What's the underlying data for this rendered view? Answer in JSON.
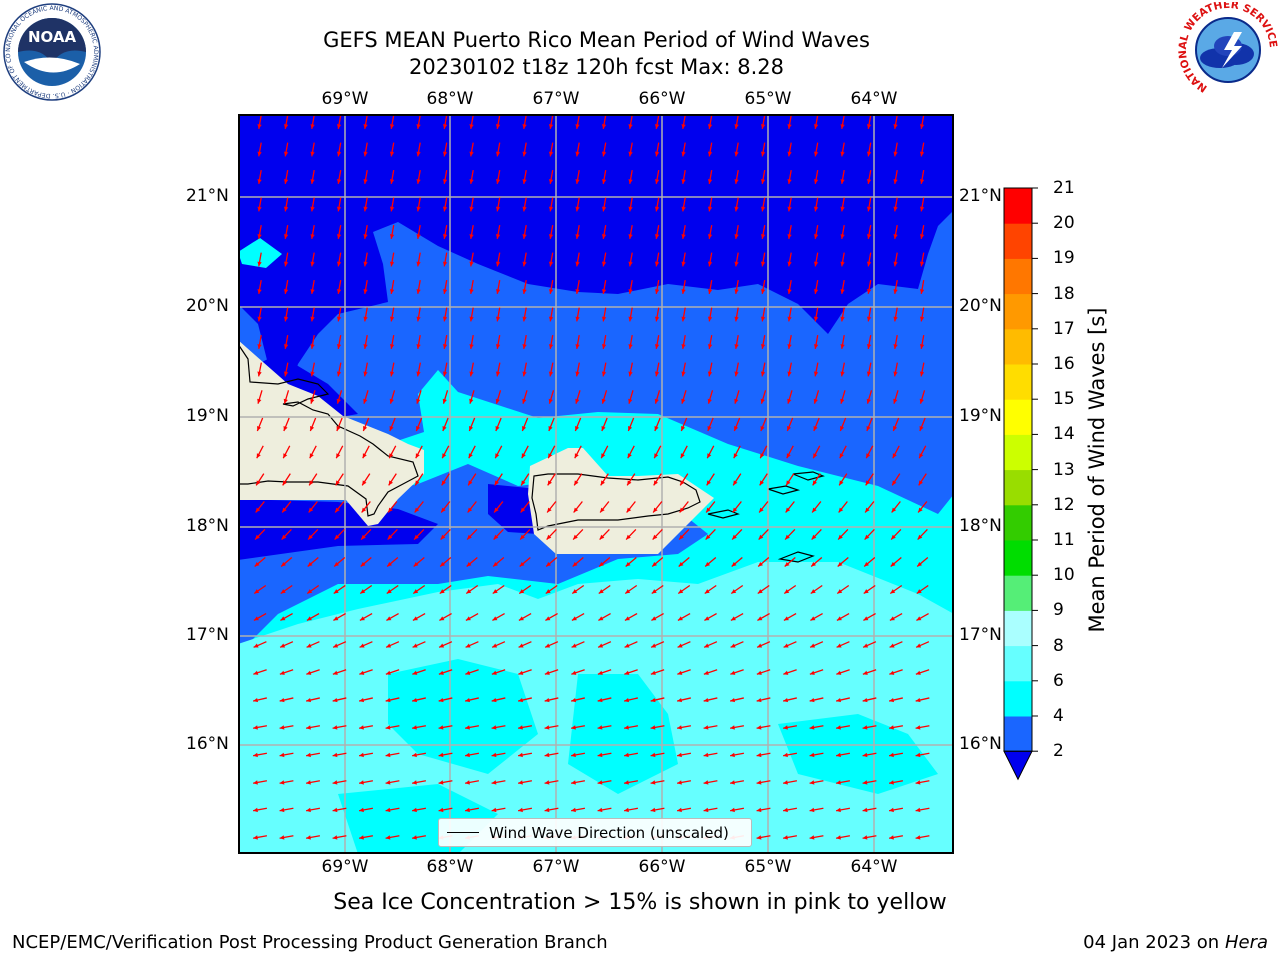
{
  "title_line1": "GEFS MEAN Puerto Rico Mean Period of Wind Waves",
  "title_line2": "20230102 t18z 120h fcst   Max: 8.28",
  "lon_labels": [
    "69°W",
    "68°W",
    "67°W",
    "66°W",
    "65°W",
    "64°W"
  ],
  "lat_labels": [
    "21°N",
    "20°N",
    "19°N",
    "18°N",
    "17°N",
    "16°N"
  ],
  "colorbar": {
    "label": "Mean Period of Wind Waves [s]",
    "ticks": [
      "2",
      "4",
      "6",
      "8",
      "9",
      "10",
      "11",
      "12",
      "13",
      "14",
      "15",
      "16",
      "17",
      "18",
      "19",
      "20",
      "21"
    ],
    "colors": [
      "#1a66ff",
      "#00ffff",
      "#66ffff",
      "#aaffff",
      "#55ee77",
      "#00dd00",
      "#33cc00",
      "#99dd00",
      "#ccff00",
      "#ffff00",
      "#ffdd00",
      "#ffbb00",
      "#ff9900",
      "#ff7700",
      "#ff4400",
      "#ff0000"
    ],
    "underflow_color": "#0000ee"
  },
  "legend_label": "Wind Wave Direction (unscaled)",
  "sea_ice_note": "Sea Ice Concentration > 15% is shown in pink to yellow",
  "footer_left": "NCEP/EMC/Verification Post Processing Product Generation Branch",
  "footer_date": "04 Jan 2023 on ",
  "footer_machine": "Hera",
  "logos": {
    "noaa_text": "NOAA",
    "noaa_ring": "NATIONAL OCEANIC AND ATMOSPHERIC ADMINISTRATION · U.S. DEPARTMENT OF COMMERCE",
    "nws_ring": "NATIONAL WEATHER SERVICE"
  },
  "colors": {
    "band_lt2": "#0000ee",
    "band_2_4": "#1a66ff",
    "band_4_6": "#00ffff",
    "band_6_8": "#66ffff",
    "land": "#eeeedd",
    "arrows": "#ff0000",
    "grid": "#b0b0b0"
  }
}
